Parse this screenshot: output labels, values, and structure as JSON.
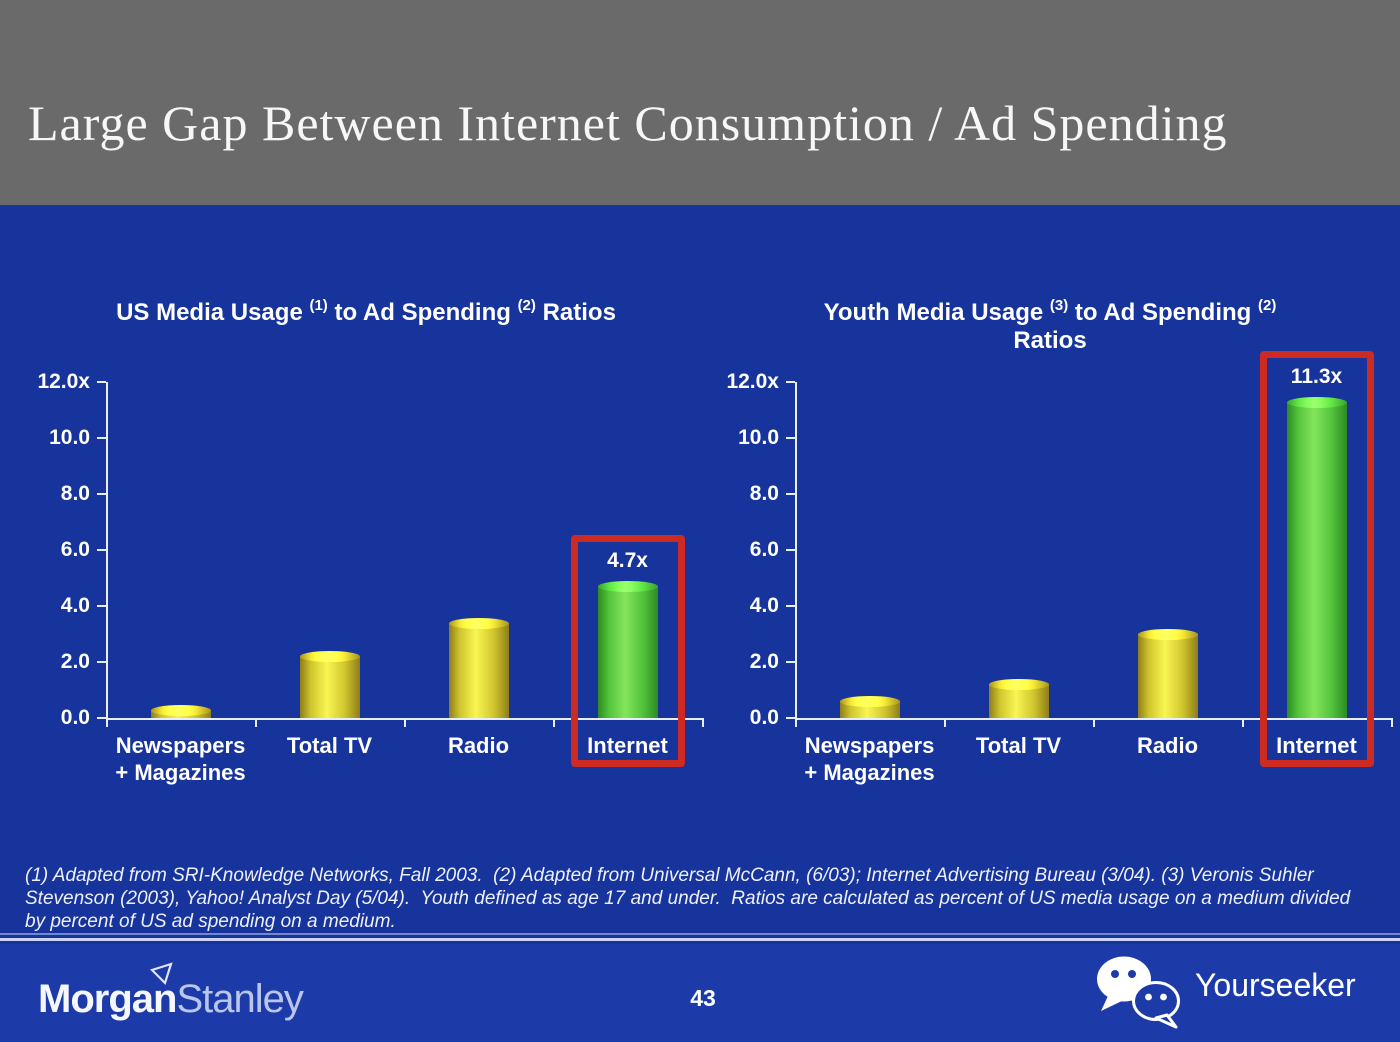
{
  "slide": {
    "header": {
      "title": "Large Gap Between Internet Consumption / Ad Spending"
    },
    "footnote_lines": [
      "(1) Adapted from SRI-Knowledge Networks, Fall 2003.  (2) Adapted from Universal McCann, (6/03); Internet Advertising Bureau (3/04). (3) Veronis Suhler",
      "Stevenson (2003), Yahoo! Analyst Day (5/04).  Youth defined as age 17 and under.  Ratios are calculated as percent of US media usage on a medium divided",
      "by percent of US ad spending on a medium."
    ],
    "footer": {
      "logo_part1": "Morgan",
      "logo_part2": "Stanley",
      "page_number": "43",
      "brand": "Yourseeker",
      "icons": {
        "wechat": "wechat-icon",
        "morgan_stanley_flag": "morgan-stanley-flag-icon"
      }
    },
    "colors": {
      "header_bg": "#6a6a6a",
      "body_bg": "#17339c",
      "footer_bg": "#1d3ba8",
      "bar_yellow": "#f9f552",
      "bar_green": "#84e55c",
      "highlight_red": "#cd2a21",
      "axis": "#e9eefb",
      "text": "#ffffff"
    }
  },
  "chart_data": [
    {
      "type": "bar",
      "title": "US Media Usage (1) to Ad Spending (2) Ratios",
      "title_parts": [
        {
          "text": "US Media Usage "
        },
        {
          "sup": "(1)"
        },
        {
          "text": " to Ad Spending "
        },
        {
          "sup": "(2)"
        },
        {
          "text": " Ratios"
        }
      ],
      "title_line2": null,
      "categories": [
        "Newspapers + Magazines",
        "Total TV",
        "Radio",
        "Internet"
      ],
      "category_lines": [
        [
          "Newspapers",
          "+ Magazines"
        ],
        [
          "Total TV"
        ],
        [
          "Radio"
        ],
        [
          "Internet"
        ]
      ],
      "values": [
        0.3,
        2.2,
        3.4,
        4.7
      ],
      "bar_labels": [
        null,
        null,
        null,
        "4.7x"
      ],
      "bar_colors": [
        "yellow",
        "yellow",
        "yellow",
        "green"
      ],
      "highlight_index": 3,
      "y_ticks": [
        "12.0x",
        "10.0",
        "8.0",
        "6.0",
        "4.0",
        "2.0",
        "0.0"
      ],
      "y_tick_values": [
        12,
        10,
        8,
        6,
        4,
        2,
        0
      ],
      "ylim": [
        0,
        12
      ],
      "xlabel": "",
      "ylabel": "",
      "grid": false,
      "legend": false
    },
    {
      "type": "bar",
      "title": "Youth Media Usage (3) to Ad Spending (2) Ratios",
      "title_parts": [
        {
          "text": "Youth Media Usage "
        },
        {
          "sup": "(3)"
        },
        {
          "text": " to Ad Spending "
        },
        {
          "sup": "(2)"
        }
      ],
      "title_line2": "Ratios",
      "categories": [
        "Newspapers + Magazines",
        "Total TV",
        "Radio",
        "Internet"
      ],
      "category_lines": [
        [
          "Newspapers",
          "+ Magazines"
        ],
        [
          "Total TV"
        ],
        [
          "Radio"
        ],
        [
          "Internet"
        ]
      ],
      "values": [
        0.6,
        1.2,
        3.0,
        11.3
      ],
      "bar_labels": [
        null,
        null,
        null,
        "11.3x"
      ],
      "bar_colors": [
        "yellow",
        "yellow",
        "yellow",
        "green"
      ],
      "highlight_index": 3,
      "y_ticks": [
        "12.0x",
        "10.0",
        "8.0",
        "6.0",
        "4.0",
        "2.0",
        "0.0"
      ],
      "y_tick_values": [
        12,
        10,
        8,
        6,
        4,
        2,
        0
      ],
      "ylim": [
        0,
        12
      ],
      "xlabel": "",
      "ylabel": "",
      "grid": false,
      "legend": false
    }
  ]
}
